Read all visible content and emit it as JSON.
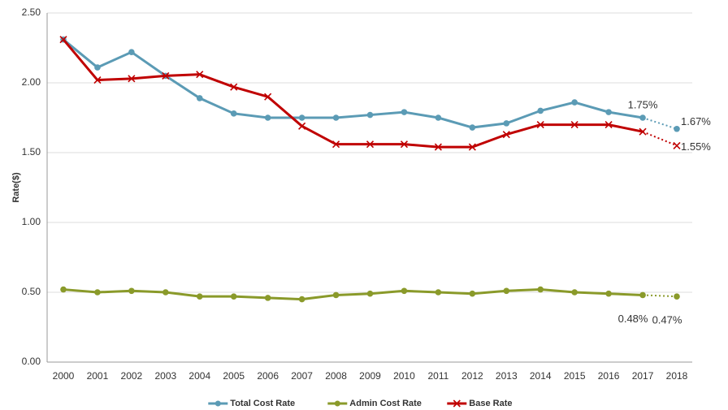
{
  "chart_data": {
    "type": "line",
    "y_label": "Rate($)",
    "categories": [
      "2000",
      "2001",
      "2002",
      "2003",
      "2004",
      "2005",
      "2006",
      "2007",
      "2008",
      "2009",
      "2010",
      "2011",
      "2012",
      "2013",
      "2014",
      "2015",
      "2016",
      "2017",
      "2018"
    ],
    "series": [
      {
        "name": "Total Cost Rate",
        "color": "#5b9bb5",
        "marker": "circle",
        "values": [
          2.31,
          2.11,
          2.22,
          2.05,
          1.89,
          1.78,
          1.75,
          1.75,
          1.75,
          1.77,
          1.79,
          1.75,
          1.68,
          1.71,
          1.8,
          1.86,
          1.79,
          1.75,
          1.67
        ],
        "value_labels": [
          null,
          null,
          null,
          null,
          null,
          null,
          null,
          null,
          null,
          null,
          null,
          null,
          null,
          null,
          null,
          null,
          null,
          "1.75%",
          "1.67%"
        ]
      },
      {
        "name": "Admin Cost Rate",
        "color": "#8a9a2a",
        "marker": "circle",
        "values": [
          0.52,
          0.5,
          0.51,
          0.5,
          0.47,
          0.47,
          0.46,
          0.45,
          0.48,
          0.49,
          0.51,
          0.5,
          0.49,
          0.51,
          0.52,
          0.5,
          0.49,
          0.48,
          0.47
        ],
        "value_labels": [
          null,
          null,
          null,
          null,
          null,
          null,
          null,
          null,
          null,
          null,
          null,
          null,
          null,
          null,
          null,
          null,
          null,
          "0.48%",
          "0.47%"
        ]
      },
      {
        "name": "Base Rate",
        "color": "#c00000",
        "marker": "x",
        "values": [
          2.31,
          2.02,
          2.03,
          2.05,
          2.06,
          1.97,
          1.9,
          1.69,
          1.56,
          1.56,
          1.56,
          1.54,
          1.54,
          1.63,
          1.7,
          1.7,
          1.7,
          1.65,
          1.55
        ],
        "value_labels": [
          null,
          null,
          null,
          null,
          null,
          null,
          null,
          null,
          null,
          null,
          null,
          null,
          null,
          null,
          null,
          null,
          null,
          null,
          "1.55%"
        ]
      }
    ],
    "ylim": [
      0,
      2.5
    ],
    "yticks": [
      {
        "value": 0,
        "label": "0.00"
      },
      {
        "value": 0.5,
        "label": "0.50"
      },
      {
        "value": 1,
        "label": "1.00"
      },
      {
        "value": 1.5,
        "label": "1.50"
      },
      {
        "value": 2,
        "label": "2.00"
      },
      {
        "value": 2.5,
        "label": "2.50"
      }
    ],
    "grid": true,
    "legend": "bottom"
  }
}
